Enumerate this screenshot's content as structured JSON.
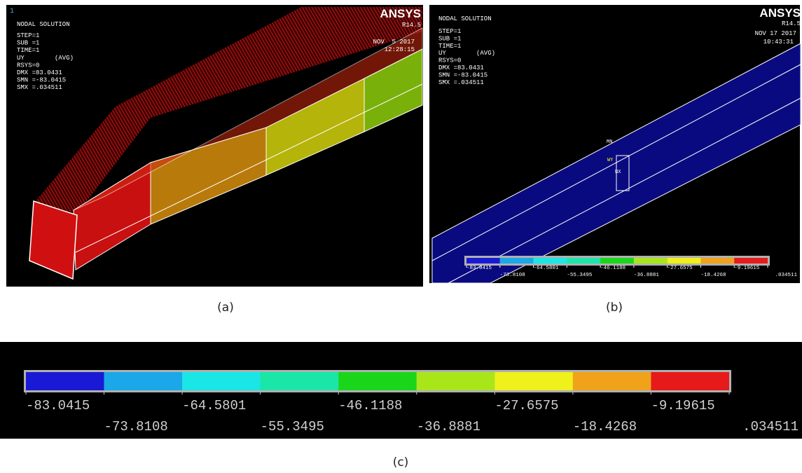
{
  "panel_a": {
    "frame_number": "1",
    "info_lines": [
      "NODAL SOLUTION",
      "STEP=1",
      "SUB =1",
      "TIME=1",
      "UY        (AVG)",
      "RSYS=0",
      "DMX =83.0431",
      "SMN =-83.0415",
      "SMX =.034511"
    ],
    "brand": "ANSYS",
    "version": "R14.5",
    "date": "NOV  5 2017",
    "time": "12:28:15",
    "caption": "(a)"
  },
  "panel_b": {
    "info_lines": [
      "NODAL SOLUTION",
      "STEP=1",
      "SUB =1",
      "TIME=1",
      "UY        (AVG)",
      "RSYS=0",
      "DMX =83.0431",
      "SMN =-83.0415",
      "SMX =.034511"
    ],
    "brand": "ANSYS",
    "version": "R14.5",
    "date": "NOV 17 2017",
    "time": "10:43:31",
    "node_labels": [
      "MN",
      "WY",
      "NX"
    ],
    "caption": "(b)"
  },
  "legend": {
    "colors": [
      "#1a1ad6",
      "#1aa8e8",
      "#1ae6e6",
      "#1ae6a8",
      "#1ad61a",
      "#a8e61a",
      "#f0f01a",
      "#f0a31a",
      "#e61a1a"
    ],
    "labels": [
      "-83.0415",
      "-73.8108",
      "-64.5801",
      "-55.3495",
      "-46.1188",
      "-36.8881",
      "-27.6575",
      "-18.4268",
      "-9.19615",
      ".034511"
    ]
  },
  "panel_c": {
    "caption": "(c)"
  }
}
